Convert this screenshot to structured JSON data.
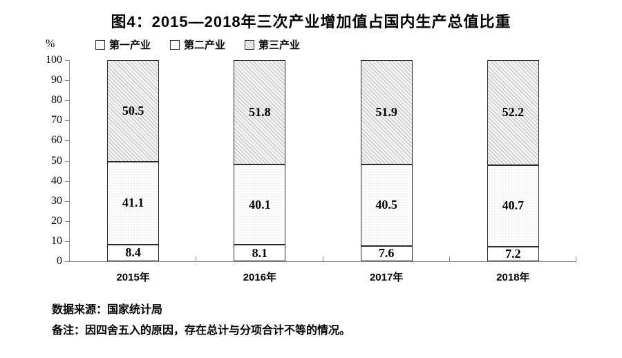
{
  "title": "图4：2015—2018年三次产业增加值占国内生产总值比重",
  "y_axis_unit": "%",
  "legend": [
    {
      "label": "第一产业",
      "swatch": "white"
    },
    {
      "label": "第二产业",
      "swatch": "light-dots"
    },
    {
      "label": "第三产业",
      "swatch": "diagonal-hatch"
    }
  ],
  "footer": {
    "source": "数据来源：国家统计局",
    "note": "备注：因四舍五入的原因，存在总计与分项合计不等的情况。"
  },
  "colors": {
    "text": "#000000",
    "axis": "#8a8a8a",
    "bar_border": "#2b2b2b",
    "hatch_line": "#bdbdbd",
    "background": "#ffffff"
  },
  "chart_data": {
    "type": "bar",
    "stacked": true,
    "title": "图4：2015—2018年三次产业增加值占国内生产总值比重",
    "categories": [
      "2015年",
      "2016年",
      "2017年",
      "2018年"
    ],
    "series": [
      {
        "name": "第一产业",
        "values": [
          8.4,
          8.1,
          7.6,
          7.2
        ]
      },
      {
        "name": "第二产业",
        "values": [
          41.1,
          40.1,
          40.5,
          40.7
        ]
      },
      {
        "name": "第三产业",
        "values": [
          50.5,
          51.8,
          51.9,
          52.2
        ]
      }
    ],
    "xlabel": "",
    "ylabel": "%",
    "ylim": [
      0,
      100
    ],
    "yticks": [
      0,
      10,
      20,
      30,
      40,
      50,
      60,
      70,
      80,
      90,
      100
    ],
    "grid": false,
    "legend_position": "top",
    "value_labels": "inside-center"
  }
}
